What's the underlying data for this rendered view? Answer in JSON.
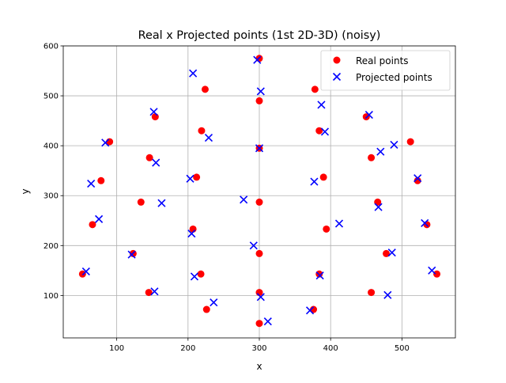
{
  "chart_data": {
    "type": "scatter",
    "title": "Real x Projected points (1st 2D-3D) (noisy)",
    "xlabel": "x",
    "ylabel": "y",
    "xlim": [
      25,
      575
    ],
    "ylim": [
      15,
      600
    ],
    "xticks": [
      100,
      200,
      300,
      400,
      500
    ],
    "yticks": [
      100,
      200,
      300,
      400,
      500,
      600
    ],
    "grid": true,
    "legend_position": "top-right",
    "series": [
      {
        "name": "Real points",
        "marker": "circle",
        "color": "#ff0000",
        "points": [
          [
            300,
            575
          ],
          [
            224,
            513
          ],
          [
            378,
            513
          ],
          [
            300,
            490
          ],
          [
            154,
            458
          ],
          [
            450,
            458
          ],
          [
            90,
            408
          ],
          [
            512,
            408
          ],
          [
            219,
            430
          ],
          [
            384,
            430
          ],
          [
            300,
            395
          ],
          [
            146,
            376
          ],
          [
            457,
            376
          ],
          [
            212,
            337
          ],
          [
            390,
            337
          ],
          [
            78,
            330
          ],
          [
            522,
            330
          ],
          [
            300,
            287
          ],
          [
            134,
            287
          ],
          [
            466,
            287
          ],
          [
            66,
            242
          ],
          [
            535,
            242
          ],
          [
            207,
            233
          ],
          [
            394,
            233
          ],
          [
            123,
            184
          ],
          [
            300,
            184
          ],
          [
            478,
            184
          ],
          [
            218,
            143
          ],
          [
            384,
            143
          ],
          [
            52,
            143
          ],
          [
            549,
            143
          ],
          [
            145,
            106
          ],
          [
            300,
            106
          ],
          [
            457,
            106
          ],
          [
            226,
            72
          ],
          [
            376,
            72
          ],
          [
            300,
            44
          ]
        ]
      },
      {
        "name": "Projected points",
        "marker": "x",
        "color": "#0000ff",
        "points": [
          [
            297,
            572
          ],
          [
            207,
            545
          ],
          [
            302,
            509
          ],
          [
            387,
            482
          ],
          [
            152,
            468
          ],
          [
            454,
            462
          ],
          [
            84,
            406
          ],
          [
            392,
            428
          ],
          [
            229,
            416
          ],
          [
            489,
            402
          ],
          [
            470,
            388
          ],
          [
            300,
            395
          ],
          [
            155,
            366
          ],
          [
            522,
            335
          ],
          [
            203,
            334
          ],
          [
            377,
            328
          ],
          [
            64,
            324
          ],
          [
            278,
            292
          ],
          [
            163,
            285
          ],
          [
            467,
            277
          ],
          [
            75,
            253
          ],
          [
            412,
            244
          ],
          [
            532,
            245
          ],
          [
            205,
            224
          ],
          [
            292,
            200
          ],
          [
            121,
            182
          ],
          [
            486,
            186
          ],
          [
            542,
            150
          ],
          [
            57,
            148
          ],
          [
            385,
            140
          ],
          [
            209,
            138
          ],
          [
            153,
            108
          ],
          [
            480,
            101
          ],
          [
            302,
            97
          ],
          [
            236,
            86
          ],
          [
            371,
            70
          ],
          [
            312,
            48
          ]
        ]
      }
    ]
  }
}
